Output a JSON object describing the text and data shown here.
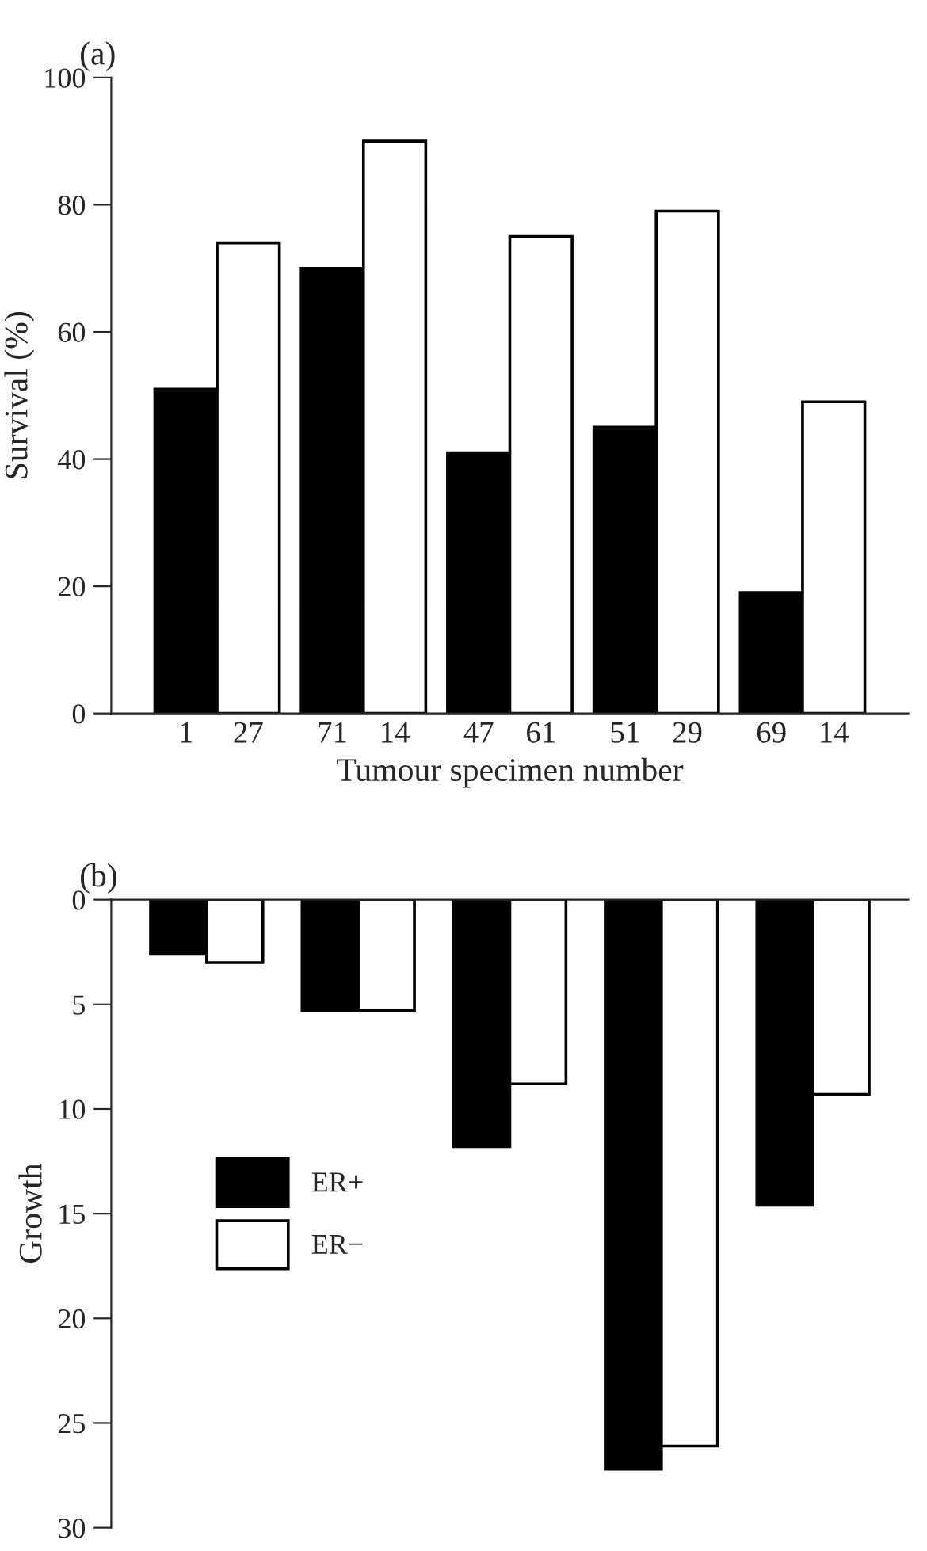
{
  "chart_data": [
    {
      "type": "bar",
      "title": "(a)",
      "xlabel": "Tumour specimen number",
      "ylabel": "Survival (%)",
      "categories": [
        "1",
        "27",
        "71",
        "14",
        "47",
        "61",
        "51",
        "29",
        "69",
        "14"
      ],
      "series": [
        {
          "color": "#000000",
          "values": [
            51,
            null,
            70,
            null,
            41,
            null,
            45,
            null,
            19,
            null
          ]
        },
        {
          "color": "#ffffff",
          "values": [
            null,
            74,
            null,
            90,
            null,
            75,
            null,
            79,
            null,
            49
          ]
        }
      ],
      "ylim": [
        0,
        100
      ],
      "yticks": [
        0,
        20,
        40,
        60,
        80,
        100
      ],
      "grid": false
    },
    {
      "type": "bar",
      "title": "(b)",
      "ylabel": "Growth",
      "categories": [
        null,
        null,
        null,
        null,
        null
      ],
      "series": [
        {
          "name": "ER+",
          "color": "#000000",
          "values": [
            2.6,
            5.3,
            11.8,
            27.2,
            14.6
          ]
        },
        {
          "name": "ER−",
          "color": "#ffffff",
          "values": [
            3.0,
            5.3,
            8.8,
            26.1,
            9.3
          ]
        }
      ],
      "ylim": [
        30,
        0
      ],
      "yticks": [
        0,
        5,
        10,
        15,
        20,
        25,
        30
      ],
      "grid": false,
      "legend": "center left",
      "tick_labels": "y"
    }
  ]
}
